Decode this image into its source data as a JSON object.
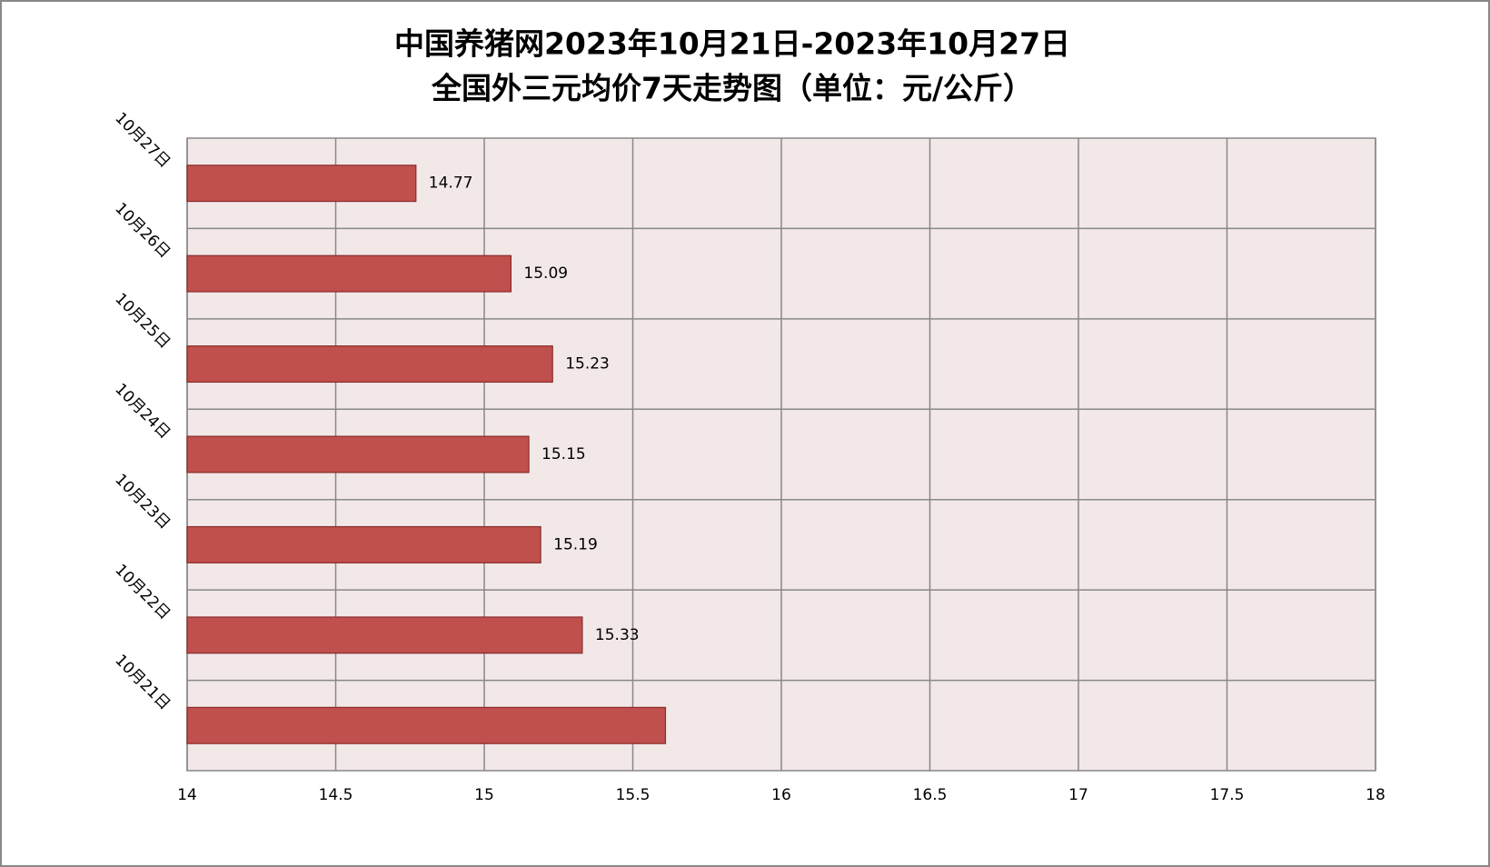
{
  "chart_data": {
    "type": "bar",
    "orientation": "horizontal",
    "title": [
      "中国养猪网2023年10月21日-2023年10月27日",
      "全国外三元均价7天走势图（单位：元/公斤）"
    ],
    "categories": [
      "10月21日",
      "10月22日",
      "10月23日",
      "10月24日",
      "10月25日",
      "10月26日",
      "10月27日"
    ],
    "values": [
      15.61,
      15.33,
      15.19,
      15.15,
      15.23,
      15.09,
      14.77
    ],
    "value_labels": [
      null,
      "15.33",
      "15.19",
      "15.15",
      "15.23",
      "15.09",
      "14.77"
    ],
    "color": "#c0504d",
    "xlim": [
      14,
      18
    ],
    "xticks": [
      14,
      14.5,
      15,
      15.5,
      16,
      16.5,
      17,
      17.5,
      18
    ],
    "grid": true
  }
}
